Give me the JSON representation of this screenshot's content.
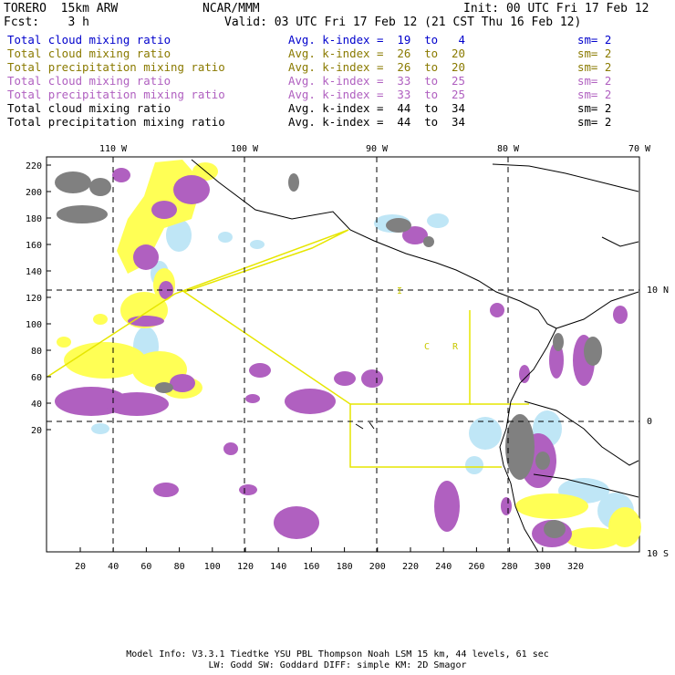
{
  "header": {
    "model": "TORERO  15km ARW",
    "org": "NCAR/MMM",
    "init": "Init: 00 UTC Fri 17 Feb 12",
    "fcst": "Fcst:    3 h",
    "valid": "Valid: 03 UTC Fri 17 Feb 12 (21 CST Thu 16 Feb 12)"
  },
  "legend": [
    {
      "field": "Total cloud mixing ratio",
      "kindex": "Avg. k-index =  19  to   4",
      "sm": "sm= 2",
      "color": "#0000cc"
    },
    {
      "field": "Total cloud mixing ratio",
      "kindex": "Avg. k-index =  26  to  20",
      "sm": "sm= 2",
      "color": "#8a7a00"
    },
    {
      "field": "Total precipitation mixing ratio",
      "kindex": "Avg. k-index =  26  to  20",
      "sm": "sm= 2",
      "color": "#8a7a00"
    },
    {
      "field": "Total cloud mixing ratio",
      "kindex": "Avg. k-index =  33  to  25",
      "sm": "sm= 2",
      "color": "#b060c0"
    },
    {
      "field": "Total precipitation mixing ratio",
      "kindex": "Avg. k-index =  33  to  25",
      "sm": "sm= 2",
      "color": "#b060c0"
    },
    {
      "field": "Total cloud mixing ratio",
      "kindex": "Avg. k-index =  44  to  34",
      "sm": "sm= 2",
      "color": "#000000"
    },
    {
      "field": "Total precipitation mixing ratio",
      "kindex": "Avg. k-index =  44  to  34",
      "sm": "sm= 2",
      "color": "#000000"
    }
  ],
  "map": {
    "lon_labels": [
      "110 W",
      "100 W",
      "90 W",
      "80 W",
      "70 W"
    ],
    "lat_labels": [
      "10 N",
      "0",
      "10 S"
    ],
    "y_ticks": [
      "220",
      "200",
      "180",
      "160",
      "140",
      "120",
      "100",
      "80",
      "60",
      "40",
      "20"
    ],
    "x_ticks": [
      "20",
      "40",
      "60",
      "80",
      "100",
      "120",
      "140",
      "160",
      "180",
      "200",
      "220",
      "240",
      "260",
      "280",
      "300",
      "320"
    ],
    "region_labels": [
      "I",
      "C",
      "R"
    ],
    "colors": {
      "cloud_light": "#bfe6f6",
      "cloud_mid": "#ffff55",
      "precip_mid": "#b060c0",
      "heavy": "#808080",
      "boxes": "#e6e600",
      "coast": "#000000"
    }
  },
  "footer": {
    "line1": "Model Info: V3.3.1   Tiedtke YSU PBL  Thompson    Noah LSM  15 km,   44 levels,   61 sec",
    "line2": "LW: Godd SW: Goddard DIFF: simple KM: 2D Smagor"
  }
}
